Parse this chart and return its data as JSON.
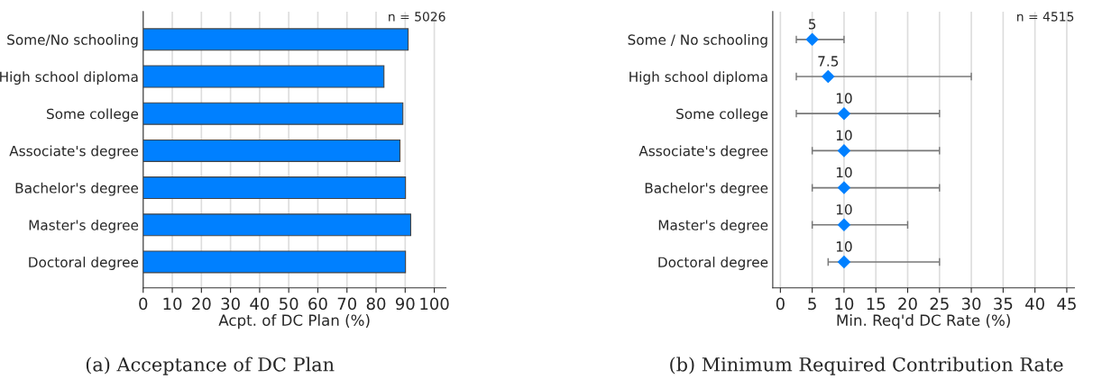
{
  "chart_data": [
    {
      "type": "bar",
      "orientation": "horizontal",
      "title": "(a) Acceptance of DC Plan",
      "xlabel": "Acpt. of DC Plan (%)",
      "categories": [
        "Some/No schooling",
        "High school diploma",
        "Some college",
        "Associate's degree",
        "Bachelor's degree",
        "Master's degree",
        "Doctoral degree"
      ],
      "values": [
        91.0,
        82.7,
        89.2,
        88.2,
        90.1,
        91.9,
        90.1
      ],
      "color": "#0080ff",
      "xlim": [
        0,
        104
      ],
      "xticks": [
        0,
        10,
        20,
        30,
        40,
        50,
        60,
        70,
        80,
        90,
        100
      ],
      "grid": "x",
      "annotations": [
        "n = 5026"
      ]
    },
    {
      "type": "scatter",
      "title": "(b) Minimum Required Contribution Rate",
      "xlabel": "Min. Req'd DC Rate (%)",
      "categories": [
        "Some / No schooling",
        "High school diploma",
        "Some college",
        "Associate's degree",
        "Bachelor's degree",
        "Master's degree",
        "Doctoral degree"
      ],
      "values": [
        5,
        7.5,
        10,
        10,
        10,
        10,
        10
      ],
      "errors": [
        [
          2.5,
          10
        ],
        [
          2.5,
          30
        ],
        [
          2.5,
          25
        ],
        [
          5,
          25
        ],
        [
          5,
          25
        ],
        [
          5,
          20
        ],
        [
          7.5,
          25
        ]
      ],
      "color": "#0080ff",
      "marker": "diamond",
      "data_labels": true,
      "orientation": "horizontal",
      "xlim": [
        -1.2,
        46.2
      ],
      "xticks": [
        0,
        5,
        10,
        15,
        20,
        25,
        30,
        35,
        40,
        45
      ],
      "grid": "x",
      "annotations": [
        "n = 4515"
      ]
    }
  ]
}
